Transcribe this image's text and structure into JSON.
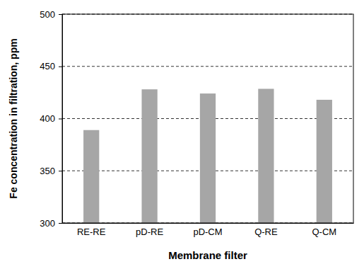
{
  "chart_data": {
    "type": "bar",
    "x_label": "Membrane filter",
    "y_label": "Fe concentration in filtration, ppm",
    "categories": [
      "RE-RE",
      "pD-RE",
      "pD-CM",
      "Q-RE",
      "Q-CM"
    ],
    "values": [
      389,
      428,
      424,
      428.5,
      418
    ],
    "color": "#a6a6a6",
    "ylim": [
      300,
      500
    ],
    "yticks": [
      300,
      350,
      400,
      450,
      500
    ],
    "grid": true
  }
}
